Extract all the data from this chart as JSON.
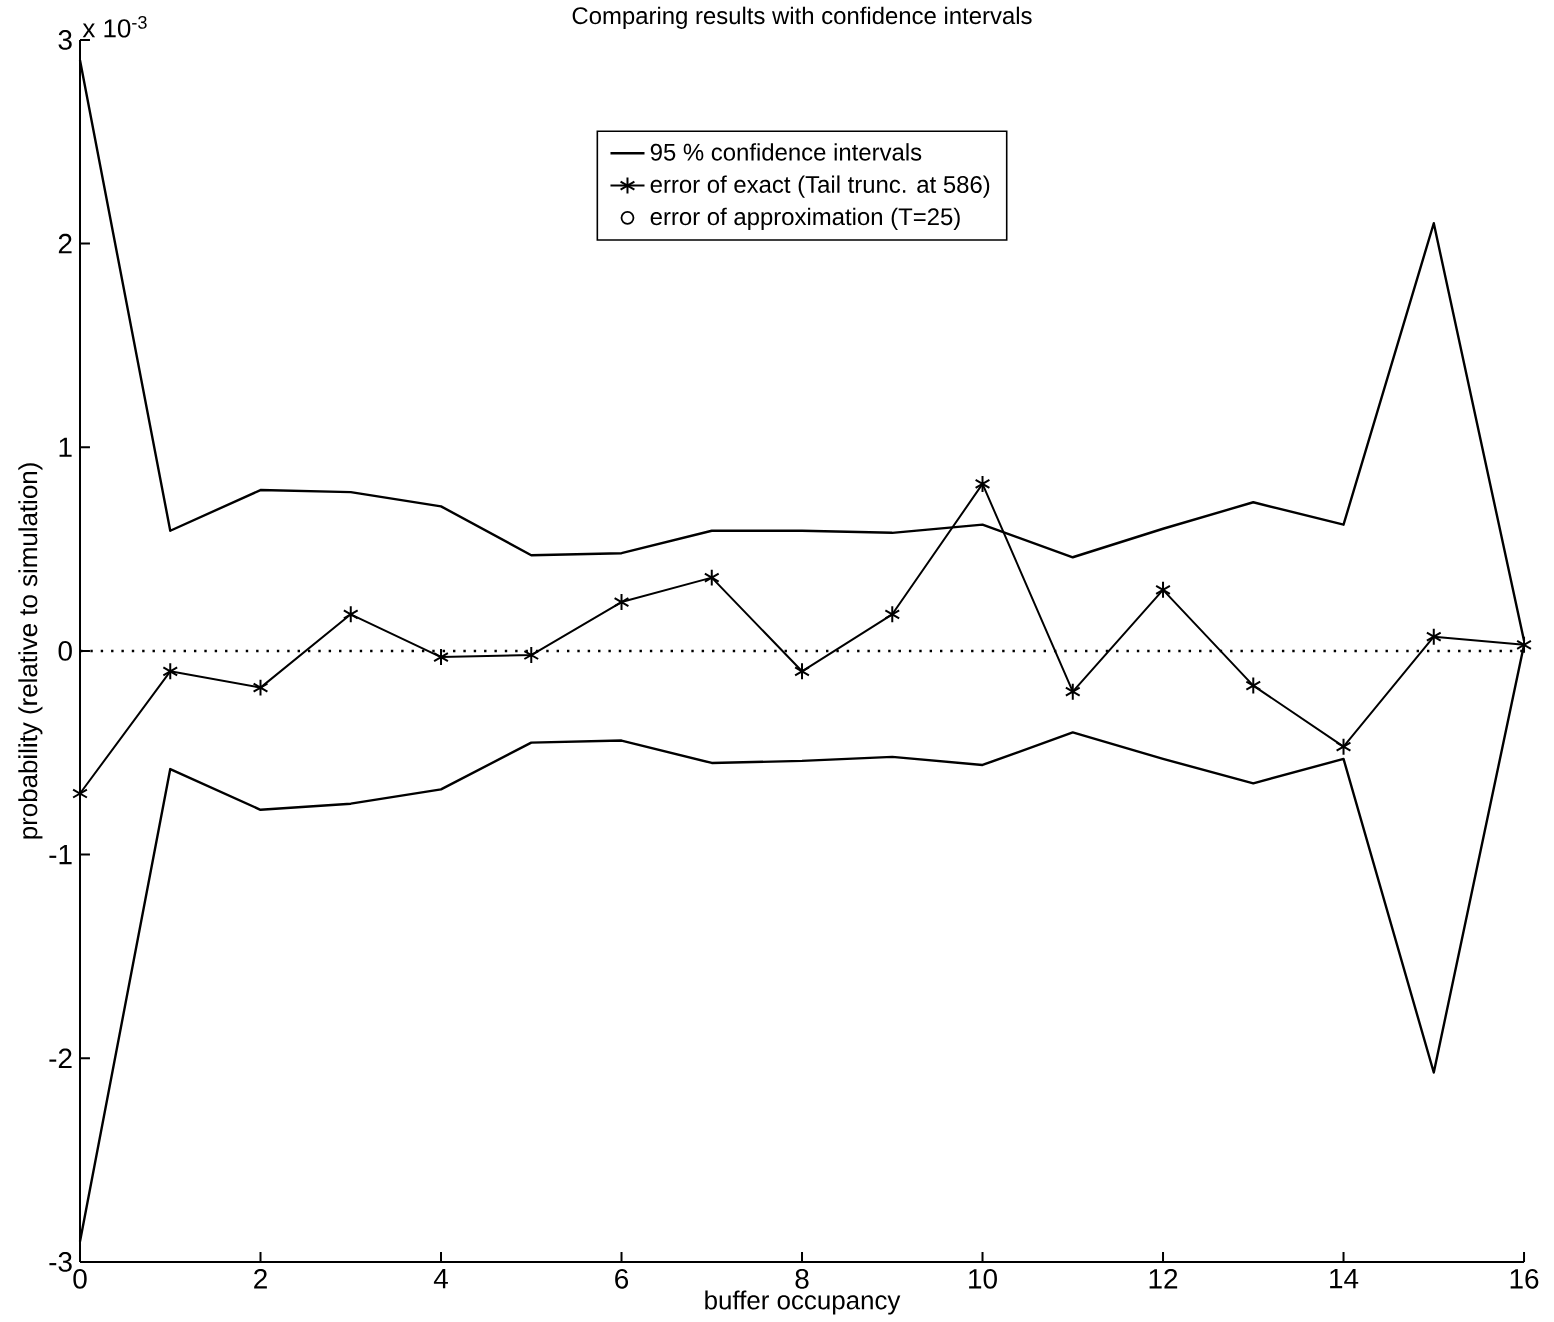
{
  "chart_data": {
    "type": "line",
    "title": "Comparing results with confidence intervals",
    "xlabel": "buffer occupancy",
    "ylabel": "probability (relative to simulation)",
    "annotations": [
      "x 10$^{-3}$"
    ],
    "x": [
      0,
      1,
      2,
      3,
      4,
      5,
      6,
      7,
      8,
      9,
      10,
      11,
      12,
      13,
      14,
      15,
      16
    ],
    "series": [
      {
        "name": "95 % confidence intervals",
        "color": "#000000",
        "marker": "none",
        "values": [
          2.9,
          0.59,
          0.79,
          0.78,
          0.71,
          0.47,
          0.48,
          0.59,
          0.59,
          0.58,
          0.62,
          0.46,
          0.6,
          0.73,
          0.62,
          2.1,
          0.05
        ]
      },
      {
        "color": "#000000",
        "marker": "none",
        "values": [
          -2.9,
          -0.58,
          -0.78,
          -0.75,
          -0.68,
          -0.45,
          -0.44,
          -0.55,
          -0.54,
          -0.52,
          -0.56,
          -0.4,
          -0.53,
          -0.65,
          -0.53,
          -2.07,
          0.03
        ]
      },
      {
        "name": "error of exact (Tail trunc. at 586)",
        "color": "#000000",
        "marker": "cross",
        "values": [
          -0.7,
          -0.1,
          -0.18,
          0.18,
          -0.03,
          -0.02,
          0.24,
          0.36,
          -0.1,
          0.18,
          0.82,
          -0.2,
          0.3,
          -0.17,
          -0.47,
          0.07,
          0.03
        ]
      },
      {
        "name": "error of approximation (T=25)",
        "type": "scatter",
        "color": "#000000",
        "marker": "circle",
        "values": [
          null,
          null,
          null,
          null,
          null,
          null,
          null,
          null,
          null,
          null,
          null,
          null,
          null,
          null,
          null,
          null,
          null
        ]
      }
    ],
    "ref_lines": [
      {
        "axis": "y",
        "value": 0,
        "line_style": "dotted"
      }
    ],
    "xlim": [
      0,
      16
    ],
    "xticks": [
      0,
      2,
      4,
      6,
      8,
      10,
      12,
      14,
      16
    ],
    "ylim": [
      -3,
      3
    ],
    "yticks": [
      -3,
      -2,
      -1,
      0,
      1,
      2,
      3
    ],
    "legend": "top",
    "grid": false
  }
}
